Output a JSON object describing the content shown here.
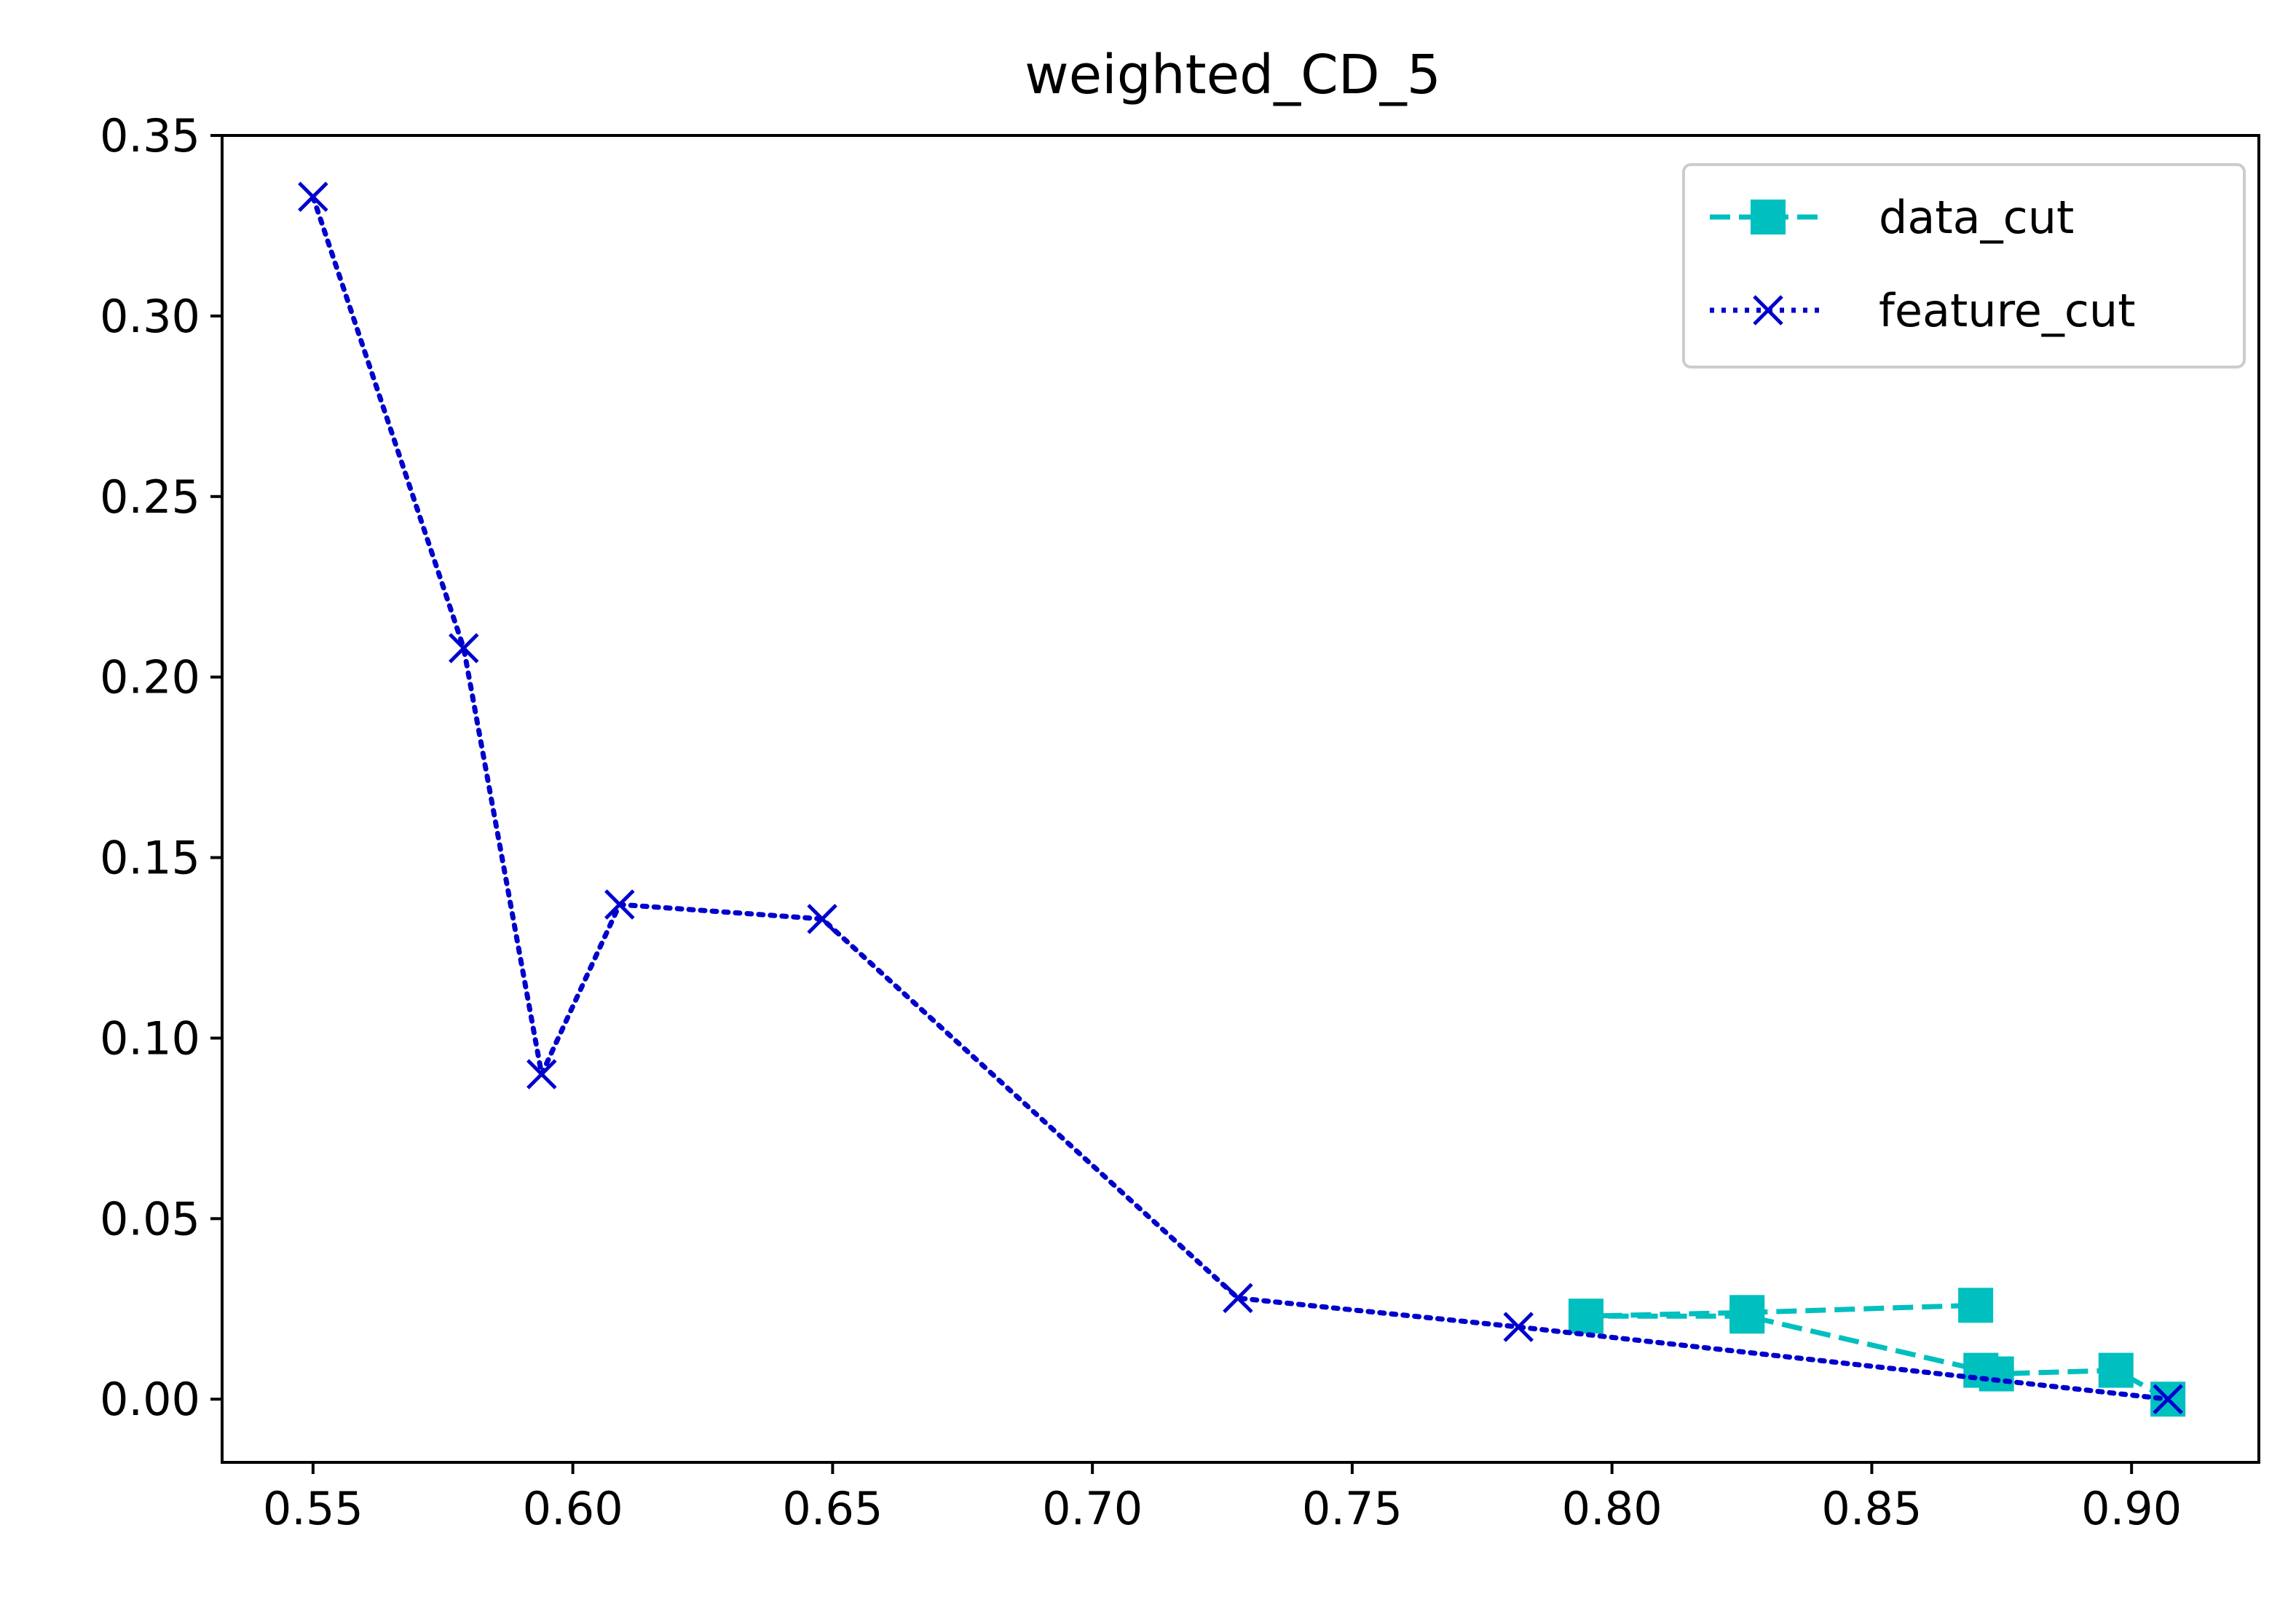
{
  "chart_data": {
    "type": "line",
    "title": "weighted_CD_5",
    "xlabel": "",
    "ylabel": "",
    "xlim": [
      0.5325,
      0.9245
    ],
    "ylim": [
      -0.0175,
      0.35
    ],
    "xticks": [
      "0.55",
      "0.60",
      "0.65",
      "0.70",
      "0.75",
      "0.80",
      "0.85",
      "0.90"
    ],
    "yticks": [
      "0.00",
      "0.05",
      "0.10",
      "0.15",
      "0.20",
      "0.25",
      "0.30",
      "0.35"
    ],
    "grid": false,
    "legend_position": "top-right",
    "series": [
      {
        "name": "data_cut",
        "color": "#00bfbf",
        "line_style": "dashed",
        "marker": "square",
        "x": [
          0.907,
          0.897,
          0.874,
          0.871,
          0.826,
          0.795,
          0.826,
          0.87
        ],
        "y": [
          0.0,
          0.008,
          0.007,
          0.008,
          0.023,
          0.023,
          0.024,
          0.026
        ]
      },
      {
        "name": "feature_cut",
        "color": "#0000cc",
        "line_style": "dotted",
        "marker": "x",
        "x": [
          0.55,
          0.579,
          0.594,
          0.609,
          0.648,
          0.728,
          0.782,
          0.907
        ],
        "y": [
          0.333,
          0.208,
          0.09,
          0.137,
          0.133,
          0.028,
          0.02,
          0.0
        ]
      }
    ]
  }
}
